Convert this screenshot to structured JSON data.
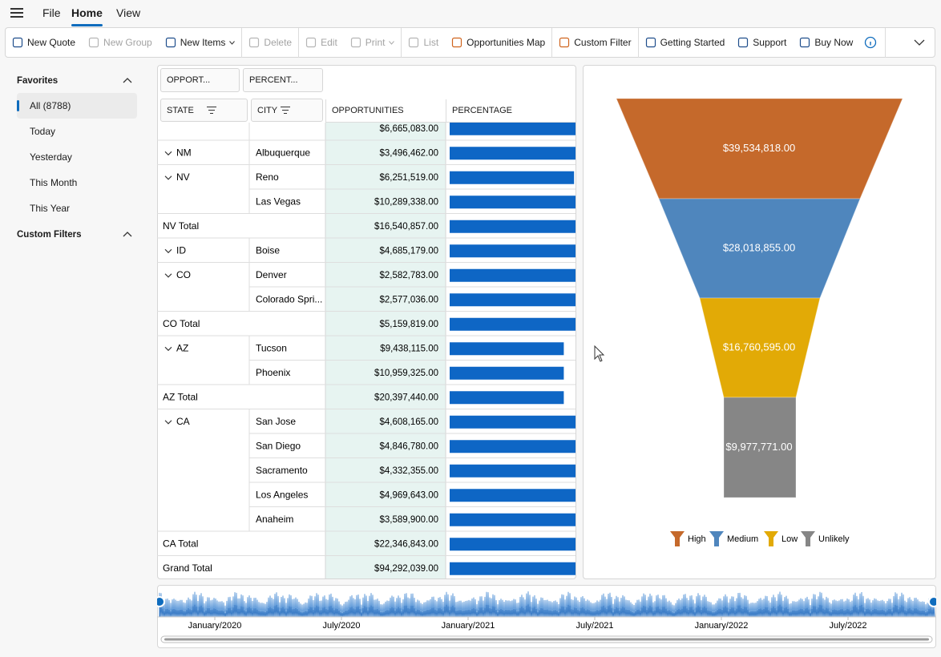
{
  "menu": [
    {
      "label": "File"
    },
    {
      "label": "Home",
      "active": true
    },
    {
      "label": "View"
    }
  ],
  "ribbon": [
    [
      {
        "label": "New Quote"
      },
      {
        "label": "New Group",
        "disabled": true
      },
      {
        "label": "New Items",
        "dropdown": true
      }
    ],
    [
      {
        "label": "Delete",
        "disabled": true
      }
    ],
    [
      {
        "label": "Edit",
        "disabled": true
      },
      {
        "label": "Print",
        "disabled": true,
        "dropdown": true
      }
    ],
    [
      {
        "label": "List",
        "disabled": true
      },
      {
        "label": "Opportunities Map"
      }
    ],
    [
      {
        "label": "Custom Filter"
      }
    ],
    [
      {
        "label": "Getting Started"
      },
      {
        "label": "Support"
      },
      {
        "label": "Buy Now"
      }
    ]
  ],
  "sidebar": [
    {
      "title": "Favorites",
      "items": [
        "All (8788)",
        "Today",
        "Yesterday",
        "This Month",
        "This Year"
      ],
      "selected": 0
    },
    {
      "title": "Custom Filters"
    }
  ],
  "pivot": {
    "data_fields": [
      "OPPORT...",
      "PERCENT..."
    ],
    "row_fields": [
      "STATE",
      "CITY"
    ],
    "columns": [
      "OPPORTUNITIES",
      "PERCENTAGE"
    ],
    "rows": [
      {
        "opportunities": "$6,665,083.00",
        "percentage": 100
      },
      {
        "state": "NM",
        "city": "Albuquerque",
        "opportunities": "$3,496,462.00",
        "percentage": 100
      },
      {
        "state": "NV",
        "city": "Reno",
        "opportunities": "$6,251,519.00",
        "percentage": 97
      },
      {
        "city": "Las Vegas",
        "opportunities": "$10,289,338.00",
        "percentage": 100
      },
      {
        "total": "NV Total",
        "opportunities": "$16,540,857.00",
        "percentage": 100
      },
      {
        "state": "ID",
        "city": "Boise",
        "opportunities": "$4,685,179.00",
        "percentage": 100
      },
      {
        "state": "CO",
        "city": "Denver",
        "opportunities": "$2,582,783.00",
        "percentage": 100
      },
      {
        "city": "Colorado Spri...",
        "opportunities": "$2,577,036.00",
        "percentage": 100
      },
      {
        "total": "CO Total",
        "opportunities": "$5,159,819.00",
        "percentage": 100
      },
      {
        "state": "AZ",
        "city": "Tucson",
        "opportunities": "$9,438,115.00",
        "percentage": 89
      },
      {
        "city": "Phoenix",
        "opportunities": "$10,959,325.00",
        "percentage": 89
      },
      {
        "total": "AZ Total",
        "opportunities": "$20,397,440.00",
        "percentage": 89
      },
      {
        "state": "CA",
        "city": "San Jose",
        "opportunities": "$4,608,165.00",
        "percentage": 100
      },
      {
        "city": "San Diego",
        "opportunities": "$4,846,780.00",
        "percentage": 100
      },
      {
        "city": "Sacramento",
        "opportunities": "$4,332,355.00",
        "percentage": 100
      },
      {
        "city": "Los Angeles",
        "opportunities": "$4,969,643.00",
        "percentage": 100
      },
      {
        "city": "Anaheim",
        "opportunities": "$3,589,900.00",
        "percentage": 100
      },
      {
        "total": "CA Total",
        "opportunities": "$22,346,843.00",
        "percentage": 100
      },
      {
        "total": "Grand Total",
        "opportunities": "$94,292,039.00",
        "percentage": 100
      }
    ]
  },
  "chart_data": {
    "type": "funnel",
    "categories": [
      "High",
      "Medium",
      "Low",
      "Unlikely"
    ],
    "values": [
      39534818,
      28018855,
      16760595,
      9977771
    ],
    "value_labels": [
      "$39,534,818.00",
      "$28,018,855.00",
      "$16,760,595.00",
      "$9,977,771.00"
    ],
    "colors": [
      "#c5692b",
      "#4f86bd",
      "#e2aa06",
      "#868686"
    ]
  },
  "timeline": {
    "labels": [
      "January/2020",
      "July/2020",
      "January/2021",
      "July/2021",
      "January/2022",
      "July/2022"
    ]
  }
}
